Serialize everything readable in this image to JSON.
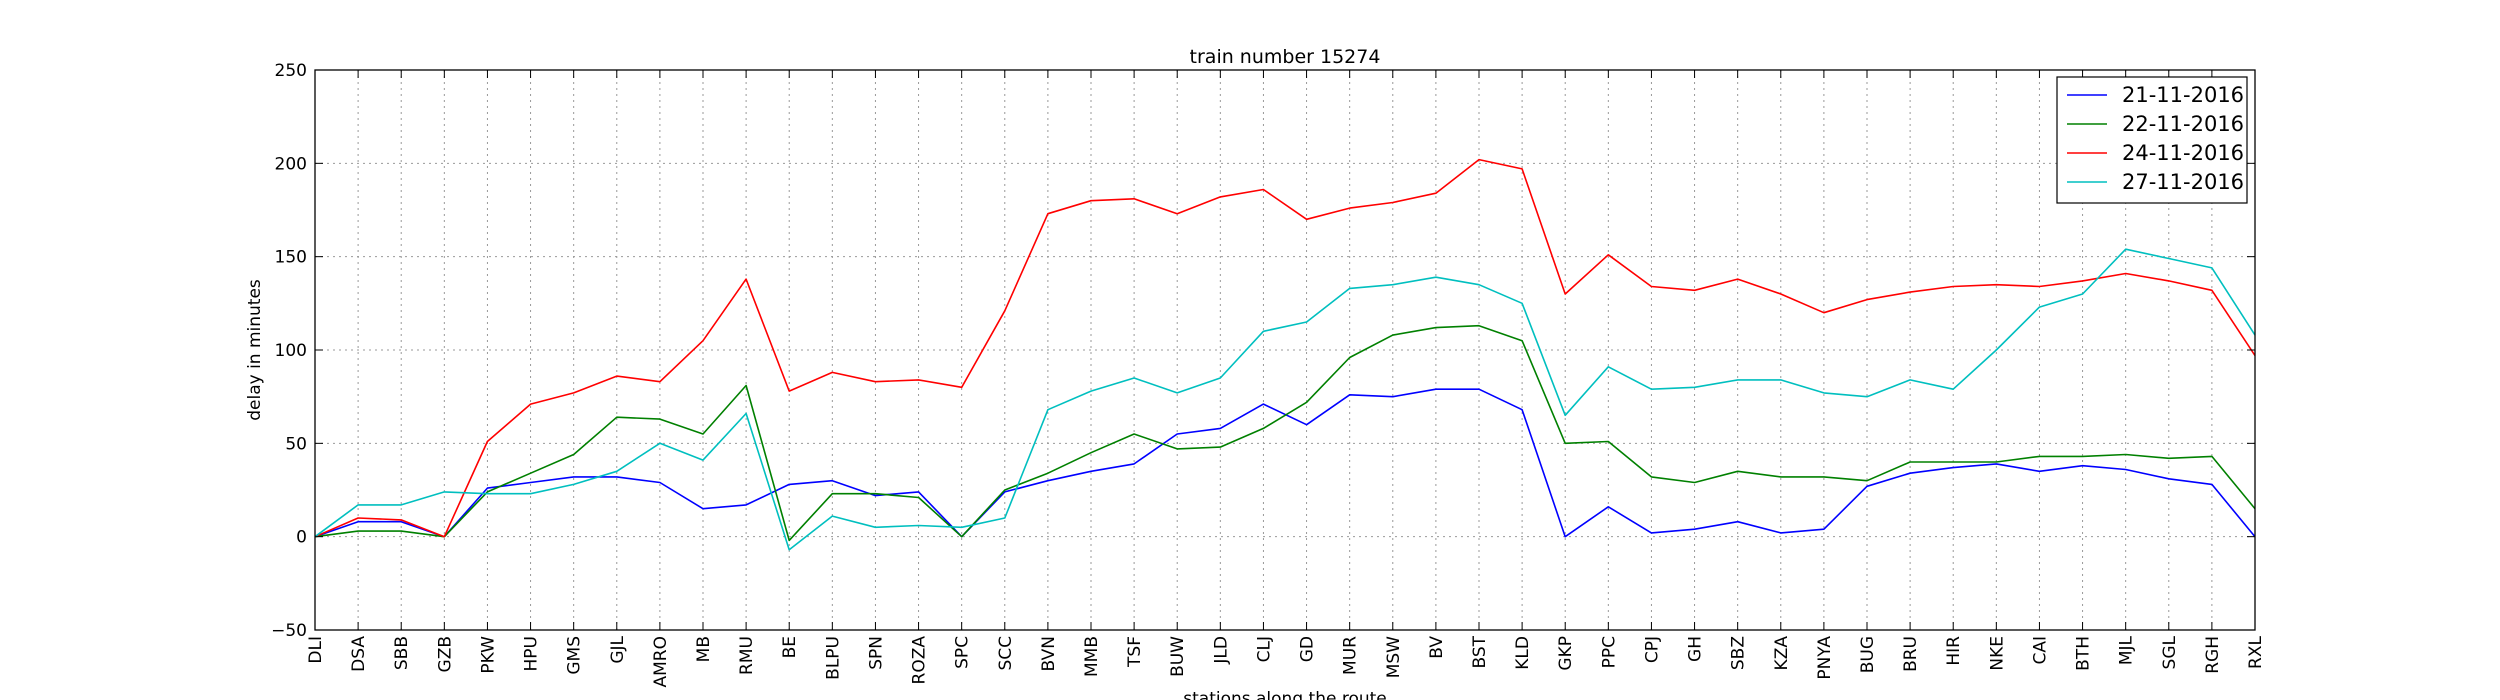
{
  "chart_data": {
    "type": "line",
    "title": "train number 15274",
    "xlabel": "stations along the route",
    "ylabel": "delay in minutes",
    "ylim": [
      -50,
      250
    ],
    "yticks": [
      "−50",
      "0",
      "50",
      "100",
      "150",
      "200",
      "250"
    ],
    "grid": true,
    "legend_position": "top-right",
    "categories": [
      "DLI",
      "DSA",
      "SBB",
      "GZB",
      "PKW",
      "HPU",
      "GMS",
      "GJL",
      "AMRO",
      "MB",
      "RMU",
      "BE",
      "BLPU",
      "SPN",
      "ROZA",
      "SPC",
      "SCC",
      "BVN",
      "MMB",
      "TSF",
      "BUW",
      "JLD",
      "CLJ",
      "GD",
      "MUR",
      "MSW",
      "BV",
      "BST",
      "KLD",
      "GKP",
      "PPC",
      "CPJ",
      "GH",
      "SBZ",
      "KZA",
      "PNYA",
      "BUG",
      "BRU",
      "HIR",
      "NKE",
      "CAI",
      "BTH",
      "MJL",
      "SGL",
      "RGH",
      "RXL"
    ],
    "series": [
      {
        "name": "21-11-2016",
        "color": "#0000ff",
        "values": [
          0,
          8,
          8,
          0,
          26,
          29,
          32,
          32,
          29,
          15,
          17,
          28,
          30,
          22,
          24,
          0,
          24,
          30,
          35,
          39,
          55,
          58,
          71,
          60,
          76,
          75,
          79,
          79,
          68,
          0,
          16,
          2,
          4,
          8,
          2,
          4,
          27,
          34,
          37,
          39,
          35,
          38,
          36,
          31,
          28,
          0
        ]
      },
      {
        "name": "22-11-2016",
        "color": "#008000",
        "values": [
          0,
          3,
          3,
          0,
          24,
          34,
          44,
          64,
          63,
          55,
          81,
          -2,
          23,
          23,
          21,
          0,
          25,
          34,
          45,
          55,
          47,
          48,
          58,
          72,
          96,
          108,
          112,
          113,
          105,
          50,
          51,
          32,
          29,
          35,
          32,
          32,
          30,
          40,
          40,
          40,
          43,
          43,
          44,
          42,
          43,
          15
        ]
      },
      {
        "name": "24-11-2016",
        "color": "#ff0000",
        "values": [
          0,
          10,
          9,
          0,
          51,
          71,
          77,
          86,
          83,
          105,
          138,
          78,
          88,
          83,
          84,
          80,
          121,
          173,
          180,
          181,
          173,
          182,
          186,
          170,
          176,
          179,
          184,
          202,
          197,
          130,
          151,
          134,
          132,
          138,
          130,
          120,
          127,
          131,
          134,
          135,
          134,
          137,
          141,
          137,
          132,
          97
        ]
      },
      {
        "name": "27-11-2016",
        "color": "#00bfbf",
        "values": [
          0,
          17,
          17,
          24,
          23,
          23,
          28,
          35,
          50,
          41,
          66,
          -7,
          11,
          5,
          6,
          5,
          10,
          68,
          78,
          85,
          77,
          85,
          110,
          115,
          133,
          135,
          139,
          135,
          125,
          65,
          91,
          79,
          80,
          84,
          84,
          77,
          75,
          84,
          79,
          100,
          123,
          130,
          154,
          149,
          144,
          108
        ]
      }
    ]
  }
}
